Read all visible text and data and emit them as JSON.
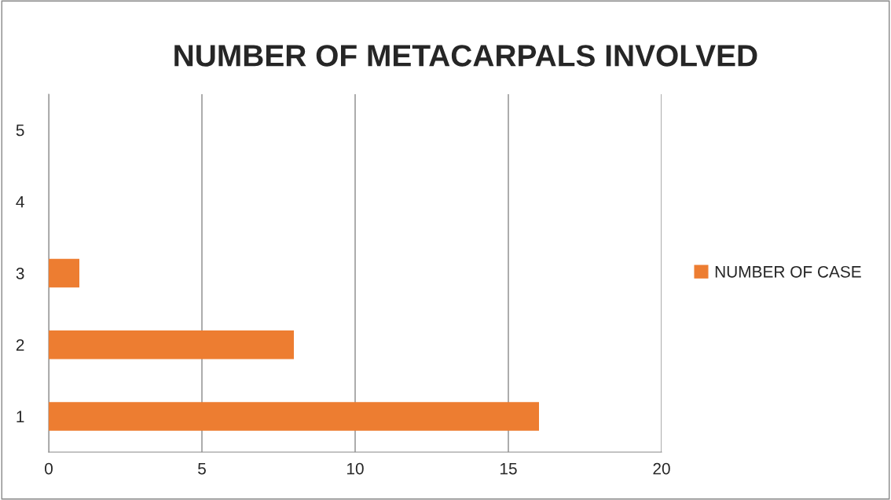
{
  "chart_data": {
    "type": "bar",
    "orientation": "horizontal",
    "title": "NUMBER OF METACARPALS INVOLVED",
    "categories": [
      "5",
      "4",
      "3",
      "2",
      "1"
    ],
    "series": [
      {
        "name": "NUMBER OF CASE",
        "color": "#ed7d31",
        "values": [
          0,
          0,
          1,
          8,
          16
        ]
      }
    ],
    "xlim": [
      0,
      20
    ],
    "xticks": [
      0,
      5,
      10,
      15,
      20
    ],
    "grid": "x",
    "legend": "right"
  }
}
